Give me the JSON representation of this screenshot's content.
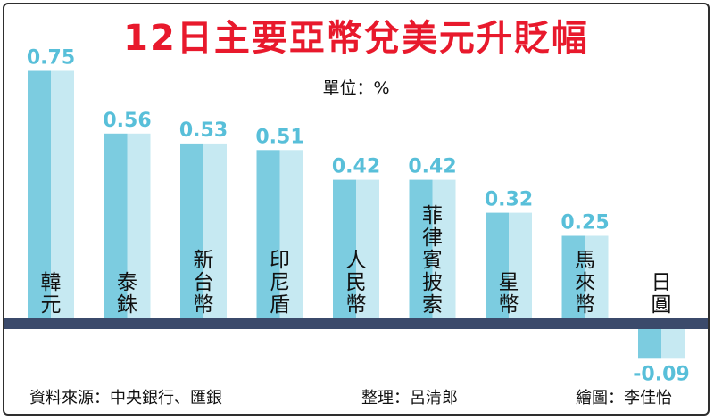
{
  "title": "12日主要亞幣兌美元升貶幅",
  "unit_label": "單位：%",
  "footer": {
    "source": "資料來源：中央銀行、匯銀",
    "editor": "整理：呂清郎",
    "illustrator": "繪圖：李佳怡"
  },
  "colors": {
    "title": "#e8192c",
    "bar_dark": "#7ccce0",
    "bar_light": "#c6e9f2",
    "value_label": "#58bfd9",
    "baseline": "#3b4a6b"
  },
  "chart_data": {
    "type": "bar",
    "title": "12日主要亞幣兌美元升貶幅",
    "ylabel": "單位：%",
    "categories": [
      "韓元",
      "泰銖",
      "新台幣",
      "印尼盾",
      "人民幣",
      "菲律賓披索",
      "星幣",
      "馬來幣",
      "日圓"
    ],
    "values": [
      0.75,
      0.56,
      0.53,
      0.51,
      0.42,
      0.42,
      0.32,
      0.25,
      -0.09
    ],
    "value_labels": [
      "0.75",
      "0.56",
      "0.53",
      "0.51",
      "0.42",
      "0.42",
      "0.32",
      "0.25",
      "-0.09"
    ],
    "grid": false,
    "legend": "none"
  }
}
